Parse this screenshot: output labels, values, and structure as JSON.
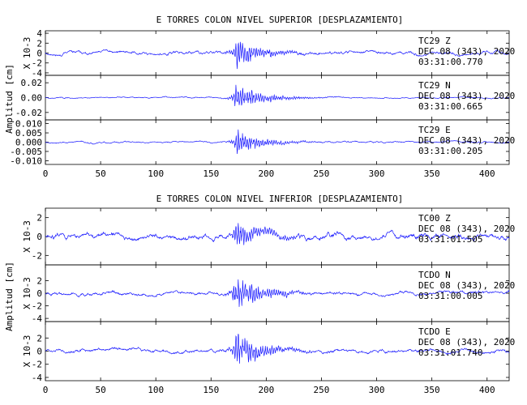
{
  "chart_data": [
    {
      "type": "line",
      "title": "E TORRES COLON NIVEL SUPERIOR [DESPLAZAMIENTO]",
      "ylabel": "Amplitud [cm]",
      "xlim": [
        0,
        420
      ],
      "x_ticks": [
        "0",
        "50",
        "100",
        "150",
        "200",
        "250",
        "300",
        "350",
        "400"
      ],
      "x_tick_values": [
        0,
        50,
        100,
        150,
        200,
        250,
        300,
        350,
        400
      ],
      "traces": [
        {
          "station": "TC29",
          "component": "Z",
          "date": "DEC 08 (343), 2020",
          "time": "03:31:00.770",
          "scale_label": "X 10-3",
          "ylim": [
            -4.5,
            4.5
          ],
          "y_ticks": [
            "4",
            "2",
            "0",
            "-2",
            "-4"
          ],
          "y_tick_values": [
            4,
            2,
            0,
            -2,
            -4
          ],
          "peak": 4.2,
          "base": 0.6,
          "seed": 11
        },
        {
          "station": "TC29",
          "component": "N",
          "date": "DEC 08 (343), 2020",
          "time": "03:31:00.665",
          "scale_label": "",
          "ylim": [
            -0.03,
            0.03
          ],
          "y_ticks": [
            "0.02",
            "0.00",
            "-0.02"
          ],
          "y_tick_values": [
            0.02,
            0.0,
            -0.02
          ],
          "peak": 0.026,
          "base": 0.0015,
          "seed": 23
        },
        {
          "station": "TC29",
          "component": "E",
          "date": "DEC 08 (343), 2020",
          "time": "03:31:00.205",
          "scale_label": "",
          "ylim": [
            -0.012,
            0.012
          ],
          "y_ticks": [
            "0.010",
            "0.005",
            "0.000",
            "-0.005",
            "-0.010"
          ],
          "y_tick_values": [
            0.01,
            0.005,
            0.0,
            -0.005,
            -0.01
          ],
          "peak": 0.0095,
          "base": 0.0008,
          "seed": 37
        }
      ]
    },
    {
      "type": "line",
      "title": "E TORRES COLON NIVEL INFERIOR [DESPLAZAMIENTO]",
      "ylabel": "Amplitud [cm]",
      "xlim": [
        0,
        420
      ],
      "x_ticks": [
        "0",
        "50",
        "100",
        "150",
        "200",
        "250",
        "300",
        "350",
        "400"
      ],
      "x_tick_values": [
        0,
        50,
        100,
        150,
        200,
        250,
        300,
        350,
        400
      ],
      "traces": [
        {
          "station": "TC00",
          "component": "Z",
          "date": "DEC 08 (343), 2020",
          "time": "03:31:01.505",
          "scale_label": "X 10-3",
          "ylim": [
            -3,
            3
          ],
          "y_ticks": [
            "2",
            "0",
            "-2"
          ],
          "y_tick_values": [
            2,
            0,
            -2
          ],
          "peak": 2.6,
          "base": 0.55,
          "seed": 51
        },
        {
          "station": "TCDO",
          "component": "N",
          "date": "DEC 08 (343), 2020",
          "time": "03:31:00.005",
          "scale_label": "X 10-3",
          "ylim": [
            -4.5,
            4.5
          ],
          "y_ticks": [
            "2",
            "0",
            "-2",
            "-4"
          ],
          "y_tick_values": [
            2,
            0,
            -2,
            -4
          ],
          "peak": 4.3,
          "base": 0.5,
          "seed": 67
        },
        {
          "station": "TCDO",
          "component": "E",
          "date": "DEC 08 (343), 2020",
          "time": "03:31:01.740",
          "scale_label": "X 10-3",
          "ylim": [
            -4.5,
            4.5
          ],
          "y_ticks": [
            "2",
            "0",
            "-2",
            "-4"
          ],
          "y_tick_values": [
            2,
            0,
            -2,
            -4
          ],
          "peak": 4.0,
          "base": 0.5,
          "seed": 83
        }
      ]
    }
  ]
}
